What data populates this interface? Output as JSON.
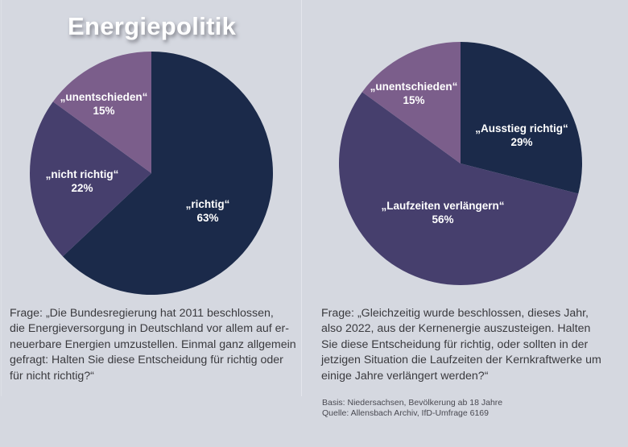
{
  "title": "Energiepolitik",
  "colors": {
    "background": "#d5d8e0",
    "dark_navy": "#1b2a4a",
    "mid_purple": "#463f6d",
    "light_purple": "#7b5e8b",
    "label_text": "#ffffff"
  },
  "chart_data": [
    {
      "type": "pie",
      "title": "",
      "start": "top",
      "direction": "clockwise",
      "slices": [
        {
          "label": "„richtig“",
          "value": 63,
          "value_label": "63%",
          "color": "#1b2a4a"
        },
        {
          "label": "„nicht richtig“",
          "value": 22,
          "value_label": "22%",
          "color": "#463f6d"
        },
        {
          "label": "„unentschieden“",
          "value": 15,
          "value_label": "15%",
          "color": "#7b5e8b"
        }
      ]
    },
    {
      "type": "pie",
      "title": "",
      "start": "top",
      "direction": "clockwise",
      "slices": [
        {
          "label": "„Ausstieg richtig“",
          "value": 29,
          "value_label": "29%",
          "color": "#1b2a4a"
        },
        {
          "label": "„Laufzeiten verlängern“",
          "value": 56,
          "value_label": "56%",
          "color": "#463f6d"
        },
        {
          "label": "„unentschieden“",
          "value": 15,
          "value_label": "15%",
          "color": "#7b5e8b"
        }
      ]
    }
  ],
  "questions": {
    "left": "Frage: „Die Bundesregierung hat 2011 beschlossen,\ndie Energieversorgung in Deutschland vor allem auf er-\nneuerbare Energien umzustellen. Einmal ganz allgemein\ngefragt: Halten Sie diese Entscheidung für richtig oder\nfür nicht richtig?“",
    "right": "Frage: „Gleichzeitig wurde beschlossen, dieses Jahr,\nalso 2022, aus der Kernenergie auszusteigen. Halten\nSie diese Entscheidung für richtig, oder sollten in der\njetzigen Situation die Laufzeiten der Kernkraftwerke um\neinige Jahre verlängert werden?“"
  },
  "source": {
    "basis": "Basis: Niedersachsen, Bevölkerung ab 18 Jahre",
    "quelle": "Quelle: Allensbach Archiv, IfD-Umfrage 6169"
  }
}
